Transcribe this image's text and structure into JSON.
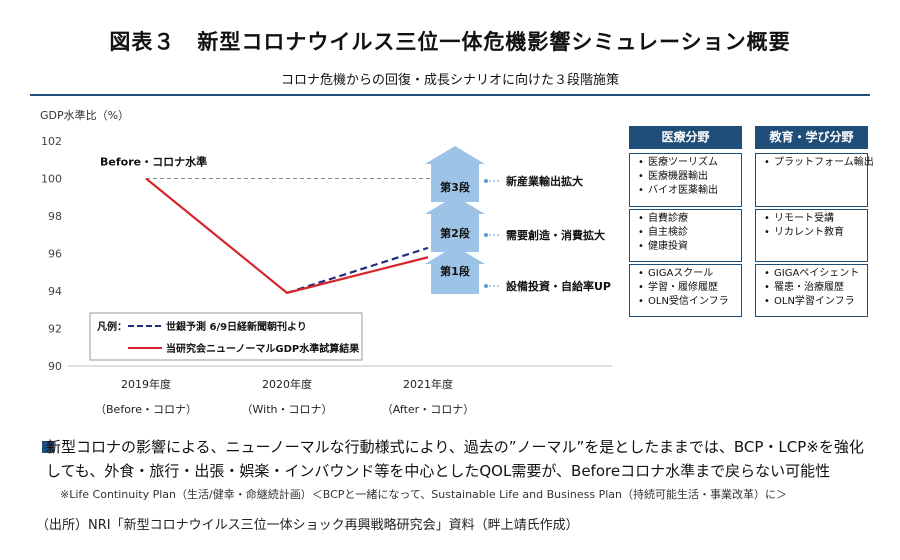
{
  "header": {
    "title": "図表３　新型コロナウイルス三位一体危機影響シミュレーション概要",
    "subtitle": "コロナ危機からの回復・成長シナリオに向けた３段階施策"
  },
  "chart_data": {
    "type": "line",
    "ylabel": "GDP水準比（%）",
    "ylim": [
      90,
      102
    ],
    "yticks": [
      90,
      92,
      94,
      96,
      98,
      100,
      102
    ],
    "categories": [
      "2019年度",
      "2020年度",
      "2021年度"
    ],
    "category_sublabels": [
      "（Before・コロナ）",
      "（With・コロナ）",
      "（After・コロナ）"
    ],
    "grid": false,
    "reference_line": {
      "label": "Before・コロナ水準",
      "value": 100
    },
    "series": [
      {
        "name": "世銀予測 6/9日経新聞朝刊より",
        "style": "dashed",
        "color": "#1f2f7a",
        "values": [
          null,
          93.9,
          96.3
        ]
      },
      {
        "name": "当研究会ニューノーマルGDP水準試算結果",
        "style": "solid",
        "color": "#d7262b",
        "values": [
          100,
          93.9,
          95.8
        ]
      }
    ],
    "legend": {
      "title": "凡例：",
      "position": "bottom-right"
    },
    "stages": [
      {
        "label": "第1段",
        "measure": "設備投資・自給率UP"
      },
      {
        "label": "第2段",
        "measure": "需要創造・消費拡大"
      },
      {
        "label": "第3段",
        "measure": "新産業輸出拡大"
      }
    ]
  },
  "matrix": {
    "columns": [
      "医療分野",
      "教育・学び分野"
    ],
    "rows": [
      [
        [
          "医療ツーリズム",
          "医療機器輸出",
          "バイオ医薬輸出"
        ],
        [
          "プラットフォーム輸出"
        ]
      ],
      [
        [
          "自費診療",
          "自主検診",
          "健康投資"
        ],
        [
          "リモート受講",
          "リカレント教育"
        ]
      ],
      [
        [
          "GIGAスクール",
          "学習・履修履歴",
          "OLN受信インフラ"
        ],
        [
          "GIGAペイシェント",
          "罹患・治療履歴",
          "OLN学習インフラ"
        ]
      ]
    ]
  },
  "notes": {
    "line1": "新型コロナの影響による、ニューノーマルな行動様式により、過去の”ノーマル”を是としたままでは、BCP・LCP※を強化",
    "line2": "しても、外食・旅行・出張・娯楽・インバウンド等を中心としたQOL需要が、Beforeコロナ水準まで戻らない可能性",
    "footnote": "※Life Continuity Plan（生活/健幸・命継続計画）＜BCPと一緒になって、Sustainable Life and Business Plan（持続可能生活・事業改革）に＞"
  },
  "source": "（出所）NRI「新型コロナウイルス三位一体ショック再興戦略研究会」資料（畔上靖氏作成）",
  "colors": {
    "accent": "#1f4e79",
    "arrow": "#9dc3e6",
    "red": "#d7262b",
    "navy": "#1f2f7a"
  }
}
